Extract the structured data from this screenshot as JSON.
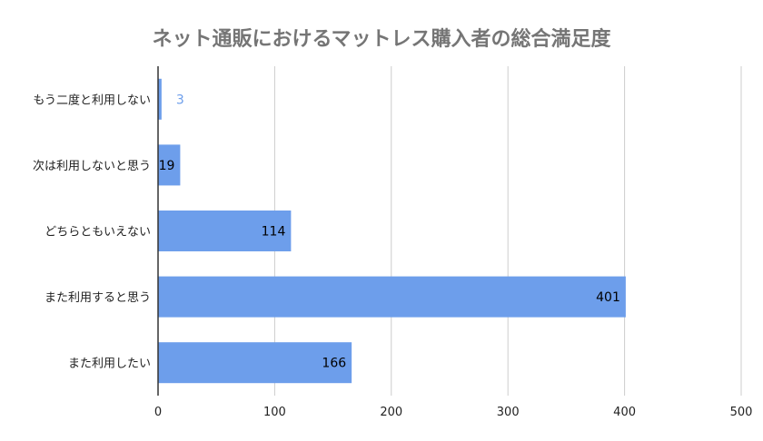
{
  "chart_data": {
    "type": "bar",
    "orientation": "horizontal",
    "title": "ネット通販におけるマットレス購入者の総合満足度",
    "categories": [
      "もう二度と利用しない",
      "次は利用しないと思う",
      "どちらともいえない",
      "また利用すると思う",
      "また利用したい"
    ],
    "values": [
      3,
      19,
      114,
      401,
      166
    ],
    "xlim": [
      0,
      500
    ],
    "xticks": [
      0,
      100,
      200,
      300,
      400,
      500
    ],
    "grid": true,
    "legend": "none",
    "colors": {
      "bar": "#6d9eeb",
      "grid": "#cccccc",
      "axis": "#333333",
      "label_inside": "#000000",
      "label_outside": "#6d9eeb"
    }
  }
}
